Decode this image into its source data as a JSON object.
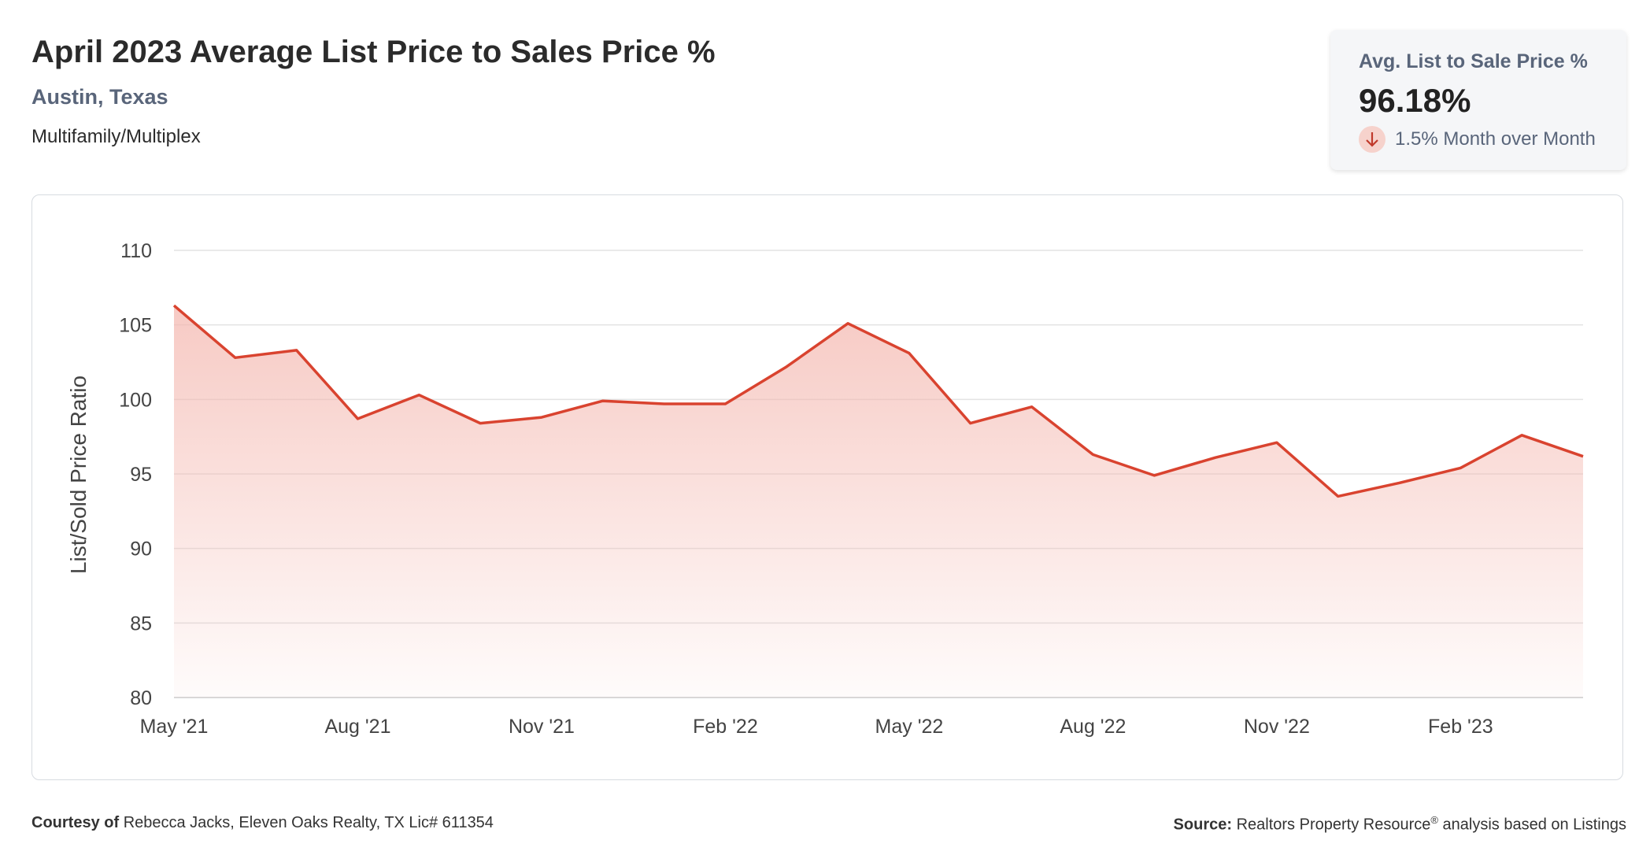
{
  "header": {
    "title": "April 2023 Average List Price to Sales Price %",
    "location": "Austin, Texas",
    "category": "Multifamily/Multiplex"
  },
  "kpi": {
    "label": "Avg. List to Sale Price %",
    "value": "96.18%",
    "change_text": "1.5% Month over Month",
    "direction_icon": "arrow-down-icon"
  },
  "footer": {
    "courtesy_label": "Courtesy of",
    "courtesy_text": "Rebecca Jacks, Eleven Oaks Realty, TX Lic# 611354",
    "source_label": "Source:",
    "source_text_1": "Realtors Property Resource",
    "source_reg": "®",
    "source_text_2": " analysis based on Listings"
  },
  "colors": {
    "line": "#d9432f",
    "fill": "#f4b8b0",
    "grid": "#e3e3e3",
    "arrow": "#c0392b"
  },
  "chart_data": {
    "type": "area",
    "ylabel": "List/Sold Price Ratio",
    "xlabel": "",
    "ylim": [
      80,
      110
    ],
    "yticks": [
      80,
      85,
      90,
      95,
      100,
      105,
      110
    ],
    "x": [
      "May '21",
      "Jun '21",
      "Jul '21",
      "Aug '21",
      "Sep '21",
      "Oct '21",
      "Nov '21",
      "Dec '21",
      "Jan '22",
      "Feb '22",
      "Mar '22",
      "Apr '22",
      "May '22",
      "Jun '22",
      "Jul '22",
      "Aug '22",
      "Sep '22",
      "Oct '22",
      "Nov '22",
      "Dec '22",
      "Jan '23",
      "Feb '23",
      "Mar '23",
      "Apr '23"
    ],
    "xtick_labels": [
      "May '21",
      "Aug '21",
      "Nov '21",
      "Feb '22",
      "May '22",
      "Aug '22",
      "Nov '22",
      "Feb '23"
    ],
    "xtick_indices": [
      0,
      3,
      6,
      9,
      12,
      15,
      18,
      21
    ],
    "series": [
      {
        "values": [
          106.3,
          102.8,
          103.3,
          98.7,
          100.3,
          98.4,
          98.8,
          99.9,
          99.7,
          99.7,
          102.2,
          105.1,
          103.1,
          98.4,
          99.5,
          96.3,
          94.9,
          96.1,
          97.1,
          93.5,
          94.4,
          95.4,
          97.6,
          96.18
        ]
      }
    ],
    "grid": true,
    "legend": "none"
  }
}
